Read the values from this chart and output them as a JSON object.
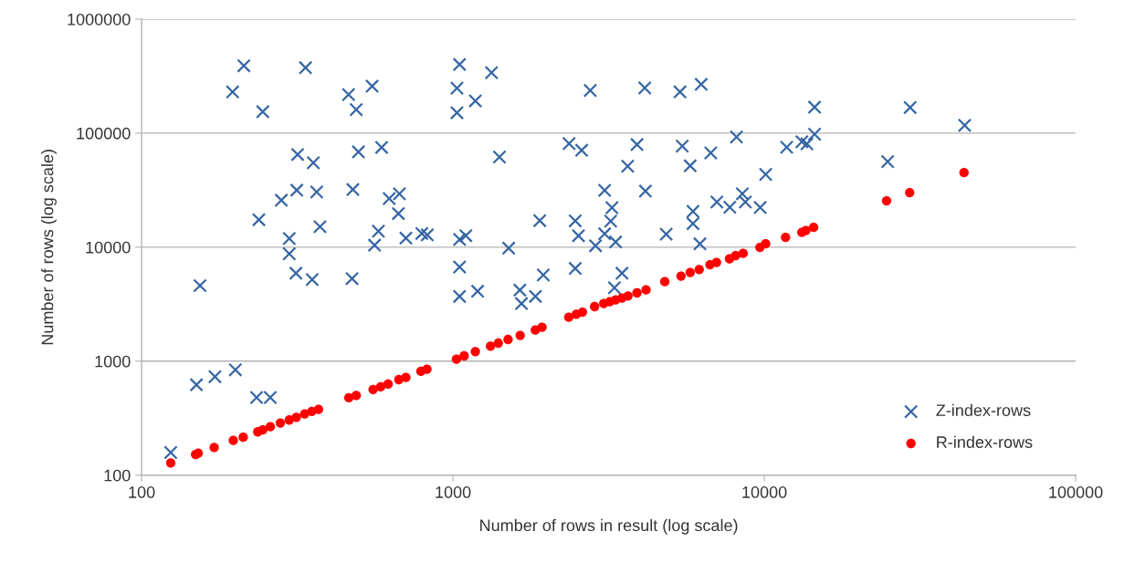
{
  "chart_data": {
    "type": "scatter",
    "xlabel": "Number of rows in result (log scale)",
    "ylabel": "Number of rows (log scale)",
    "log": "xy",
    "xlim": [
      100,
      100000
    ],
    "xticks": [
      100,
      1000,
      10000,
      100000
    ],
    "ylim": [
      100,
      1000000
    ],
    "yticks": [
      100,
      1000,
      10000,
      100000,
      1000000
    ],
    "grid": "y",
    "legend": "bottom right",
    "series": [
      {
        "name": "Z-index-rows",
        "color": "#3465a4",
        "marker": "cross",
        "x": [
          124,
          150,
          172,
          200,
          154,
          234,
          259,
          213,
          196,
          245,
          336,
          462,
          550,
          489,
          317,
          356,
          497,
          590,
          315,
          365,
          281,
          477,
          624,
          673,
          668,
          238,
          374,
          576,
          794,
          827,
          706,
          298,
          560,
          298,
          313,
          353,
          474,
          1050,
          1030,
          1330,
          1180,
          1030,
          2760,
          4130,
          5360,
          6270,
          2360,
          2590,
          3900,
          5450,
          6730,
          8140,
          1410,
          3640,
          5780,
          10100,
          3070,
          4150,
          7040,
          7750,
          8500,
          8690,
          9700,
          3240,
          3210,
          5900,
          5900,
          1900,
          2470,
          2530,
          3070,
          2870,
          3330,
          4840,
          6210,
          1050,
          1100,
          1510,
          1050,
          2470,
          1950,
          3490,
          1050,
          1200,
          1640,
          1660,
          1840,
          3300,
          14500,
          29400,
          44000,
          11800,
          13200,
          13700,
          14500,
          24900
        ],
        "values": [
          158,
          620,
          730,
          840,
          4600,
          480,
          480,
          390000,
          230000,
          154000,
          375000,
          218000,
          258000,
          161000,
          65000,
          55000,
          68500,
          75000,
          31600,
          30500,
          25800,
          32000,
          26700,
          29400,
          19700,
          17400,
          15100,
          13800,
          13200,
          12800,
          12000,
          11900,
          10400,
          8750,
          5900,
          5200,
          5300,
          400000,
          248000,
          339000,
          192000,
          151000,
          237000,
          249000,
          230000,
          268000,
          81000,
          70700,
          79400,
          77000,
          67000,
          92500,
          61700,
          51300,
          51700,
          43500,
          31500,
          31000,
          24900,
          22400,
          29400,
          24900,
          22300,
          22200,
          16900,
          20600,
          16100,
          17100,
          17000,
          12600,
          13100,
          10300,
          11100,
          13000,
          10700,
          11700,
          12600,
          9800,
          6700,
          6500,
          5700,
          5900,
          3700,
          4100,
          4200,
          3200,
          3700,
          4400,
          169000,
          168000,
          117000,
          75200,
          84000,
          80500,
          97800,
          56300
        ]
      },
      {
        "name": "R-index-rows",
        "color": "#ff0000",
        "marker": "circle",
        "x": [
          124,
          149,
          152,
          171,
          197,
          212,
          236,
          245,
          259,
          279,
          298,
          314,
          334,
          352,
          370,
          463,
          489,
          554,
          586,
          619,
          670,
          706,
          789,
          825,
          1026,
          1086,
          1180,
          1320,
          1398,
          1503,
          1644,
          1839,
          1932,
          2355,
          2490,
          2605,
          2850,
          3050,
          3190,
          3330,
          3490,
          3650,
          3900,
          4170,
          4790,
          5400,
          5780,
          6180,
          6690,
          7020,
          7730,
          8090,
          8550,
          9680,
          10100,
          11700,
          13200,
          13600,
          14400,
          24700,
          29300,
          43800
        ],
        "values": [
          128,
          152,
          156,
          175,
          202,
          215,
          240,
          250,
          266,
          287,
          305,
          322,
          345,
          362,
          378,
          477,
          501,
          563,
          595,
          629,
          689,
          721,
          814,
          851,
          1041,
          1113,
          1213,
          1355,
          1440,
          1550,
          1681,
          1877,
          1984,
          2430,
          2582,
          2694,
          3010,
          3200,
          3320,
          3450,
          3580,
          3730,
          3970,
          4220,
          4980,
          5570,
          6000,
          6370,
          7020,
          7340,
          7900,
          8440,
          8820,
          9960,
          10700,
          12200,
          13500,
          14000,
          14900,
          25500,
          30100,
          45100
        ]
      }
    ]
  }
}
